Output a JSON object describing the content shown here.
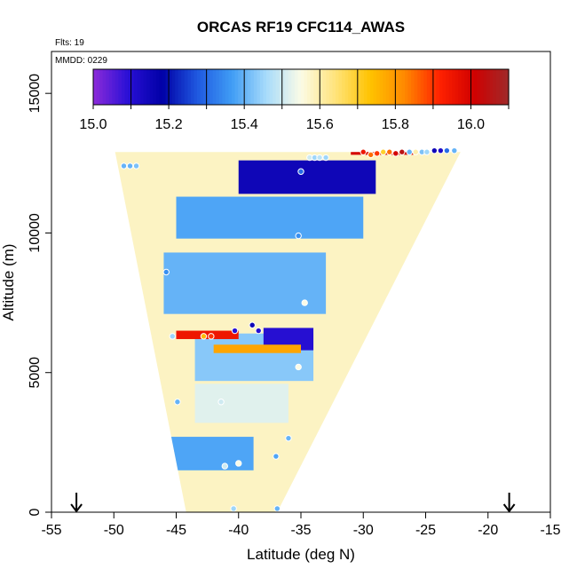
{
  "chart_data": {
    "type": "heatmap",
    "title": "ORCAS RF19 CFC114_AWAS",
    "annotations": {
      "flights": "Flts: 19",
      "date": "MMDD: 0229"
    },
    "xlabel": "Latitude (deg N)",
    "ylabel": "Altitude (m)",
    "xlim": [
      -55,
      -15
    ],
    "ylim": [
      0,
      16500
    ],
    "x_ticks": [
      -55,
      -50,
      -45,
      -40,
      -35,
      -30,
      -25,
      -20,
      -15
    ],
    "x_tick_labels": [
      "-55",
      "-50",
      "-45",
      "-40",
      "-35",
      "-30",
      "-25",
      "-20",
      "-15"
    ],
    "y_ticks": [
      0,
      5000,
      10000,
      15000
    ],
    "y_tick_labels": [
      "0",
      "5000",
      "10000",
      "15000"
    ],
    "colorbar": {
      "min": 15.0,
      "max": 16.1,
      "ticks": [
        15.0,
        15.2,
        15.4,
        15.6,
        15.8,
        16.0
      ],
      "tick_labels": [
        "15.0",
        "15.2",
        "15.4",
        "15.6",
        "15.8",
        "16.0"
      ],
      "colors": [
        "#8c2bd9",
        "#2a10d6",
        "#0000a6",
        "#1f58e0",
        "#3f9cf5",
        "#a8dcfb",
        "#fbfbe6",
        "#ffe37a",
        "#ffc300",
        "#ff8800",
        "#ff2200",
        "#d00000",
        "#9f2a2a"
      ]
    },
    "field_envelope": {
      "bottom_lat": [
        -44.2,
        -36.9
      ],
      "top_lat": [
        -49.9,
        -22.2
      ],
      "top_alt": 12900
    },
    "bands": [
      {
        "lat": [
          -45.6,
          -38.8
        ],
        "alt": [
          1500,
          2700
        ],
        "value": 15.38
      },
      {
        "lat": [
          -43.5,
          -36.0
        ],
        "alt": [
          3200,
          4600
        ],
        "value": 15.52
      },
      {
        "lat": [
          -43.5,
          -34.0
        ],
        "alt": [
          4700,
          6400
        ],
        "value": 15.43
      },
      {
        "lat": [
          -46.0,
          -33.0
        ],
        "alt": [
          7100,
          9300
        ],
        "value": 15.4
      },
      {
        "lat": [
          -45.0,
          -30.0
        ],
        "alt": [
          9800,
          11300
        ],
        "value": 15.38
      },
      {
        "lat": [
          -40.0,
          -29.0
        ],
        "alt": [
          11400,
          12600
        ],
        "value": 15.15
      },
      {
        "lat": [
          -38.0,
          -34.0
        ],
        "alt": [
          5800,
          6600
        ],
        "value": 15.1
      },
      {
        "lat": [
          -45.0,
          -40.0
        ],
        "alt": [
          6200,
          6500
        ],
        "value": 15.95
      },
      {
        "lat": [
          -42.0,
          -35.0
        ],
        "alt": [
          5700,
          6000
        ],
        "value": 15.78
      },
      {
        "lat": [
          -31.0,
          -26.0
        ],
        "alt": [
          12800,
          13000
        ],
        "value": 16.0
      }
    ],
    "samples": [
      {
        "x": -49.2,
        "y": 12400,
        "v": 15.4
      },
      {
        "x": -48.7,
        "y": 12400,
        "v": 15.4
      },
      {
        "x": -48.2,
        "y": 12400,
        "v": 15.42
      },
      {
        "x": -35.0,
        "y": 12200,
        "v": 15.3
      },
      {
        "x": -34.3,
        "y": 12700,
        "v": 15.5
      },
      {
        "x": -33.9,
        "y": 12700,
        "v": 15.45
      },
      {
        "x": -33.5,
        "y": 12700,
        "v": 15.48
      },
      {
        "x": -33.0,
        "y": 12700,
        "v": 15.45
      },
      {
        "x": -30.0,
        "y": 12900,
        "v": 15.95
      },
      {
        "x": -29.4,
        "y": 12800,
        "v": 15.85
      },
      {
        "x": -28.9,
        "y": 12850,
        "v": 15.9
      },
      {
        "x": -28.4,
        "y": 12900,
        "v": 15.7
      },
      {
        "x": -27.9,
        "y": 12900,
        "v": 15.85
      },
      {
        "x": -27.4,
        "y": 12850,
        "v": 16.0
      },
      {
        "x": -26.9,
        "y": 12900,
        "v": 16.05
      },
      {
        "x": -26.3,
        "y": 12900,
        "v": 15.4
      },
      {
        "x": -25.8,
        "y": 12900,
        "v": 15.6
      },
      {
        "x": -25.3,
        "y": 12900,
        "v": 15.42
      },
      {
        "x": -24.9,
        "y": 12900,
        "v": 15.45
      },
      {
        "x": -24.3,
        "y": 12950,
        "v": 15.15
      },
      {
        "x": -23.8,
        "y": 12950,
        "v": 15.12
      },
      {
        "x": -23.3,
        "y": 12950,
        "v": 15.3
      },
      {
        "x": -22.7,
        "y": 12950,
        "v": 15.4
      },
      {
        "x": -35.2,
        "y": 9900,
        "v": 15.35
      },
      {
        "x": -45.8,
        "y": 8600,
        "v": 15.35
      },
      {
        "x": -34.7,
        "y": 7500,
        "v": 15.55
      },
      {
        "x": -38.9,
        "y": 6700,
        "v": 15.15
      },
      {
        "x": -38.4,
        "y": 6500,
        "v": 15.1
      },
      {
        "x": -40.3,
        "y": 6500,
        "v": 15.1
      },
      {
        "x": -42.2,
        "y": 6300,
        "v": 15.9
      },
      {
        "x": -42.8,
        "y": 6300,
        "v": 15.75
      },
      {
        "x": -45.3,
        "y": 6300,
        "v": 15.45
      },
      {
        "x": -35.2,
        "y": 5200,
        "v": 15.55
      },
      {
        "x": -44.9,
        "y": 3950,
        "v": 15.4
      },
      {
        "x": -41.4,
        "y": 3950,
        "v": 15.5
      },
      {
        "x": -36.0,
        "y": 2650,
        "v": 15.4
      },
      {
        "x": -37.0,
        "y": 2000,
        "v": 15.38
      },
      {
        "x": -40.0,
        "y": 1750,
        "v": 15.55
      },
      {
        "x": -41.1,
        "y": 1650,
        "v": 15.5
      },
      {
        "x": -40.4,
        "y": 130,
        "v": 15.45
      },
      {
        "x": -36.9,
        "y": 130,
        "v": 15.4
      }
    ],
    "markers": [
      {
        "type": "arrow-down",
        "x": -53.0
      },
      {
        "type": "arrow-down",
        "x": -18.3
      }
    ],
    "grid": false
  }
}
